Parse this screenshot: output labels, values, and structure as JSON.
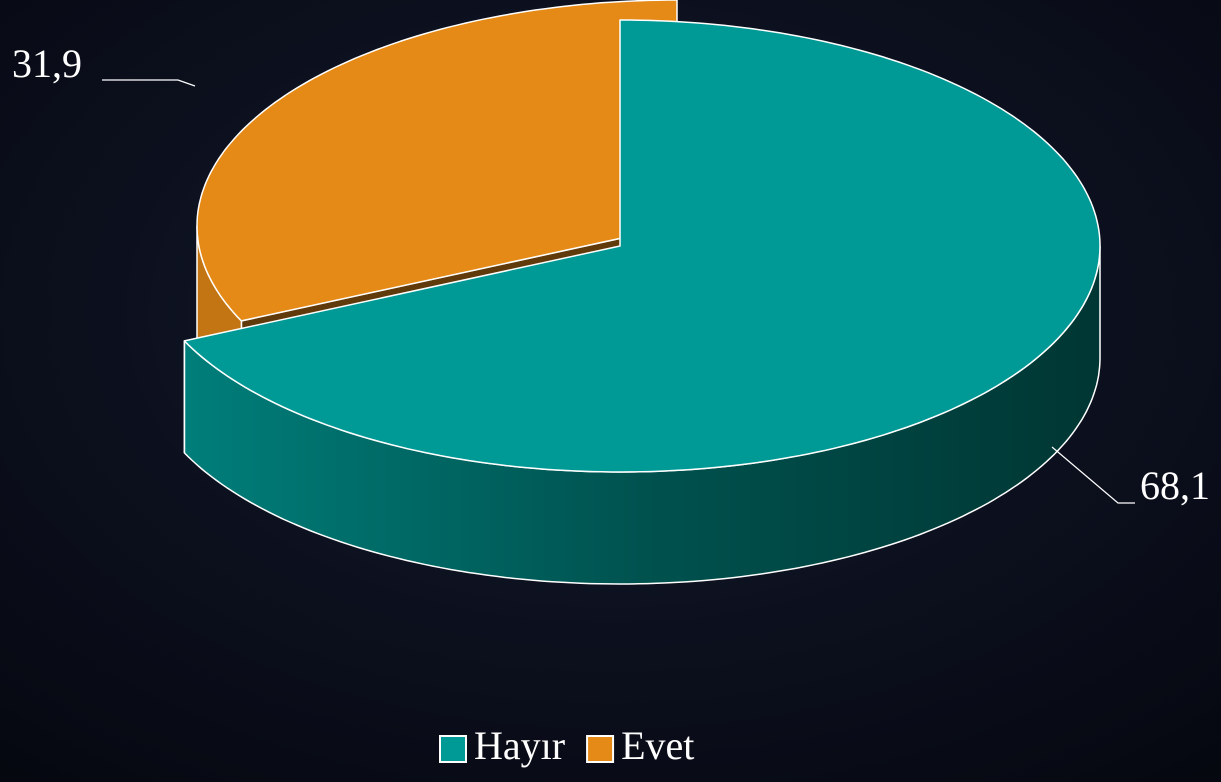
{
  "chart_data": {
    "type": "pie3d",
    "categories": [
      "Hayır",
      "Evet"
    ],
    "values": [
      68.1,
      31.9
    ],
    "value_labels": [
      "68,1",
      "31,9"
    ],
    "colors": [
      "#009a96",
      "#e58a17"
    ],
    "legend": "bottom"
  }
}
